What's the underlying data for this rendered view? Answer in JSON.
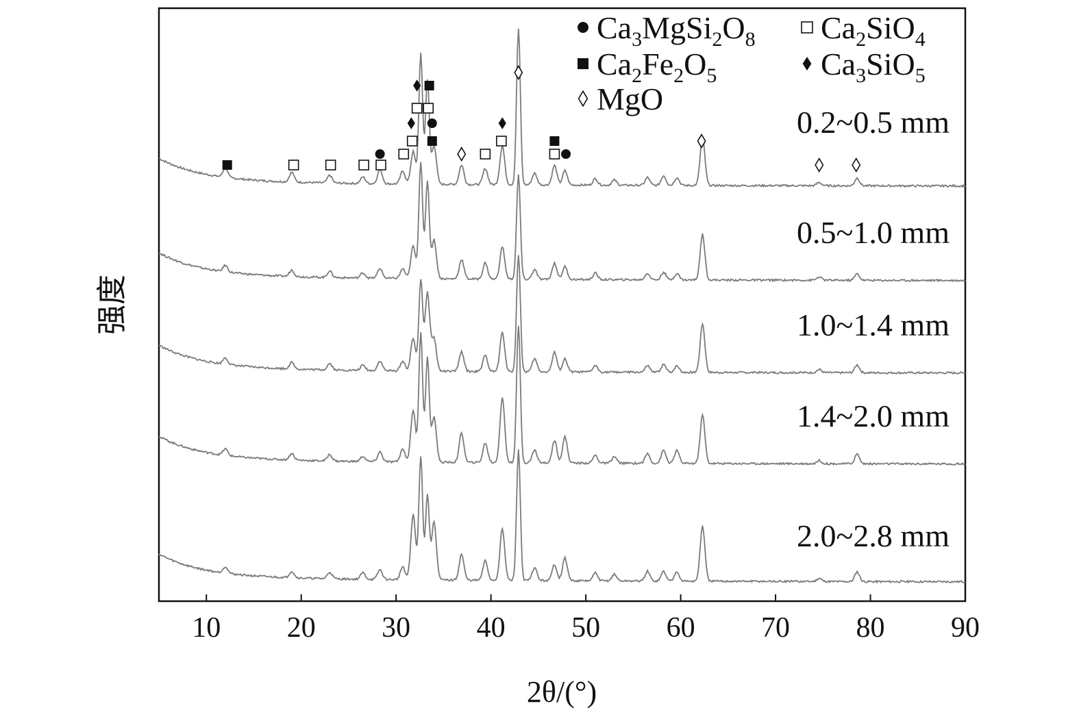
{
  "chart_data": {
    "type": "line",
    "xlabel": "2θ/(°)",
    "ylabel": "强度",
    "xlim": [
      5,
      90
    ],
    "xticks": [
      10,
      20,
      30,
      40,
      50,
      60,
      70,
      80,
      90
    ],
    "yticks_shown": false,
    "grid": false,
    "legend_position": "top-right",
    "line_color": "#7a7a7a",
    "legend": [
      {
        "marker": "filled-circle",
        "formula": [
          [
            "Ca",
            ""
          ],
          [
            "3",
            "sub"
          ],
          [
            "MgSi",
            ""
          ],
          [
            "2",
            "sub"
          ],
          [
            "O",
            ""
          ],
          [
            "8",
            "sub"
          ]
        ]
      },
      {
        "marker": "open-square",
        "formula": [
          [
            "Ca",
            ""
          ],
          [
            "2",
            "sub"
          ],
          [
            "SiO",
            ""
          ],
          [
            "4",
            "sub"
          ]
        ]
      },
      {
        "marker": "filled-square",
        "formula": [
          [
            "Ca",
            ""
          ],
          [
            "2",
            "sub"
          ],
          [
            "Fe",
            ""
          ],
          [
            "2",
            "sub"
          ],
          [
            "O",
            ""
          ],
          [
            "5",
            "sub"
          ]
        ]
      },
      {
        "marker": "filled-diamond",
        "formula": [
          [
            "Ca",
            ""
          ],
          [
            "3",
            "sub"
          ],
          [
            "SiO",
            ""
          ],
          [
            "5",
            "sub"
          ]
        ]
      },
      {
        "marker": "open-diamond",
        "formula": [
          [
            "MgO",
            ""
          ]
        ]
      }
    ],
    "series": [
      {
        "name": "0.2~0.5 mm",
        "offset": 4,
        "peaks": [
          [
            12.0,
            0.15
          ],
          [
            19.0,
            0.15
          ],
          [
            23.0,
            0.12
          ],
          [
            26.5,
            0.1
          ],
          [
            28.3,
            0.22
          ],
          [
            30.7,
            0.2
          ],
          [
            31.8,
            0.5
          ],
          [
            32.6,
            2.0
          ],
          [
            33.3,
            1.6
          ],
          [
            34.0,
            0.6
          ],
          [
            36.9,
            0.3
          ],
          [
            39.4,
            0.25
          ],
          [
            41.2,
            0.6
          ],
          [
            42.9,
            2.4
          ],
          [
            44.6,
            0.18
          ],
          [
            46.7,
            0.3
          ],
          [
            47.8,
            0.22
          ],
          [
            51.0,
            0.1
          ],
          [
            53.0,
            0.08
          ],
          [
            56.5,
            0.12
          ],
          [
            58.2,
            0.15
          ],
          [
            59.6,
            0.12
          ],
          [
            62.3,
            0.75
          ],
          [
            74.6,
            0.05
          ],
          [
            78.6,
            0.12
          ]
        ]
      },
      {
        "name": "0.5~1.0 mm",
        "offset": 3,
        "peaks": [
          [
            12.0,
            0.1
          ],
          [
            19.0,
            0.1
          ],
          [
            23.0,
            0.1
          ],
          [
            26.5,
            0.08
          ],
          [
            28.3,
            0.15
          ],
          [
            30.7,
            0.15
          ],
          [
            31.8,
            0.5
          ],
          [
            32.6,
            1.8
          ],
          [
            33.3,
            1.5
          ],
          [
            34.0,
            0.6
          ],
          [
            36.9,
            0.3
          ],
          [
            39.4,
            0.25
          ],
          [
            41.2,
            0.5
          ],
          [
            42.9,
            1.6
          ],
          [
            44.6,
            0.15
          ],
          [
            46.7,
            0.25
          ],
          [
            47.8,
            0.2
          ],
          [
            51.0,
            0.1
          ],
          [
            56.5,
            0.1
          ],
          [
            58.2,
            0.12
          ],
          [
            59.6,
            0.1
          ],
          [
            62.3,
            0.7
          ],
          [
            74.6,
            0.05
          ],
          [
            78.6,
            0.1
          ]
        ]
      },
      {
        "name": "1.0~1.4 mm",
        "offset": 2,
        "peaks": [
          [
            12.0,
            0.1
          ],
          [
            19.0,
            0.1
          ],
          [
            23.0,
            0.1
          ],
          [
            26.5,
            0.08
          ],
          [
            28.3,
            0.15
          ],
          [
            30.7,
            0.15
          ],
          [
            31.8,
            0.5
          ],
          [
            32.6,
            1.4
          ],
          [
            33.3,
            1.2
          ],
          [
            34.0,
            0.5
          ],
          [
            36.9,
            0.3
          ],
          [
            39.4,
            0.25
          ],
          [
            41.2,
            0.6
          ],
          [
            42.9,
            1.8
          ],
          [
            44.6,
            0.2
          ],
          [
            46.7,
            0.3
          ],
          [
            47.8,
            0.2
          ],
          [
            51.0,
            0.1
          ],
          [
            56.5,
            0.1
          ],
          [
            58.2,
            0.12
          ],
          [
            59.6,
            0.1
          ],
          [
            62.3,
            0.75
          ],
          [
            74.6,
            0.05
          ],
          [
            78.6,
            0.12
          ]
        ]
      },
      {
        "name": "1.4~2.0 mm",
        "offset": 1,
        "peaks": [
          [
            12.0,
            0.1
          ],
          [
            19.0,
            0.1
          ],
          [
            23.0,
            0.1
          ],
          [
            26.5,
            0.08
          ],
          [
            28.3,
            0.15
          ],
          [
            30.7,
            0.2
          ],
          [
            31.8,
            0.8
          ],
          [
            32.6,
            2.0
          ],
          [
            33.3,
            1.6
          ],
          [
            34.0,
            0.7
          ],
          [
            36.9,
            0.45
          ],
          [
            39.4,
            0.3
          ],
          [
            41.2,
            1.0
          ],
          [
            42.9,
            2.1
          ],
          [
            44.6,
            0.2
          ],
          [
            46.7,
            0.35
          ],
          [
            47.8,
            0.4
          ],
          [
            51.0,
            0.12
          ],
          [
            53.0,
            0.1
          ],
          [
            56.5,
            0.15
          ],
          [
            58.2,
            0.2
          ],
          [
            59.6,
            0.2
          ],
          [
            62.3,
            0.75
          ],
          [
            74.6,
            0.05
          ],
          [
            78.6,
            0.15
          ]
        ]
      },
      {
        "name": "2.0~2.8 mm",
        "offset": 0,
        "peaks": [
          [
            12.0,
            0.1
          ],
          [
            19.0,
            0.1
          ],
          [
            23.0,
            0.1
          ],
          [
            26.5,
            0.1
          ],
          [
            28.3,
            0.15
          ],
          [
            30.7,
            0.2
          ],
          [
            31.8,
            1.0
          ],
          [
            32.6,
            1.9
          ],
          [
            33.3,
            1.3
          ],
          [
            34.0,
            0.9
          ],
          [
            36.9,
            0.4
          ],
          [
            39.4,
            0.3
          ],
          [
            41.2,
            0.8
          ],
          [
            42.9,
            2.0
          ],
          [
            44.6,
            0.2
          ],
          [
            46.7,
            0.25
          ],
          [
            47.8,
            0.35
          ],
          [
            51.0,
            0.12
          ],
          [
            53.0,
            0.1
          ],
          [
            56.5,
            0.15
          ],
          [
            58.2,
            0.15
          ],
          [
            59.6,
            0.15
          ],
          [
            62.3,
            0.85
          ],
          [
            74.6,
            0.05
          ],
          [
            78.6,
            0.15
          ]
        ]
      }
    ],
    "phase_markers": [
      {
        "x": 12.2,
        "level": 0,
        "marker": "filled-square"
      },
      {
        "x": 19.2,
        "level": 0,
        "marker": "open-square"
      },
      {
        "x": 23.1,
        "level": 0,
        "marker": "open-square"
      },
      {
        "x": 26.6,
        "level": 0,
        "marker": "open-square"
      },
      {
        "x": 28.4,
        "level": 0,
        "marker": "open-square"
      },
      {
        "x": 28.3,
        "level": 1,
        "marker": "filled-circle"
      },
      {
        "x": 30.8,
        "level": 1,
        "marker": "open-square"
      },
      {
        "x": 31.7,
        "level": 2,
        "marker": "open-square"
      },
      {
        "x": 31.6,
        "level": 3,
        "marker": "filled-diamond"
      },
      {
        "x": 32.2,
        "level": 4,
        "marker": "open-square"
      },
      {
        "x": 32.2,
        "level": 5,
        "marker": "filled-diamond"
      },
      {
        "x": 33.4,
        "level": 4,
        "marker": "open-square"
      },
      {
        "x": 33.5,
        "level": 5,
        "marker": "filled-square"
      },
      {
        "x": 33.8,
        "level": 2,
        "marker": "filled-square"
      },
      {
        "x": 33.8,
        "level": 3,
        "marker": "filled-circle"
      },
      {
        "x": 36.9,
        "level": 1,
        "marker": "open-diamond"
      },
      {
        "x": 39.4,
        "level": 1,
        "marker": "open-square"
      },
      {
        "x": 41.1,
        "level": 2,
        "marker": "open-square"
      },
      {
        "x": 41.2,
        "level": 3,
        "marker": "filled-diamond"
      },
      {
        "x": 42.9,
        "level": 6,
        "marker": "open-diamond"
      },
      {
        "x": 46.7,
        "level": 1,
        "marker": "open-square"
      },
      {
        "x": 46.7,
        "level": 2,
        "marker": "filled-square"
      },
      {
        "x": 47.9,
        "level": 1,
        "marker": "filled-circle"
      },
      {
        "x": 62.2,
        "level": 2,
        "marker": "open-diamond"
      },
      {
        "x": 74.6,
        "level": 0,
        "marker": "open-diamond"
      },
      {
        "x": 78.5,
        "level": 0,
        "marker": "open-diamond"
      }
    ]
  }
}
